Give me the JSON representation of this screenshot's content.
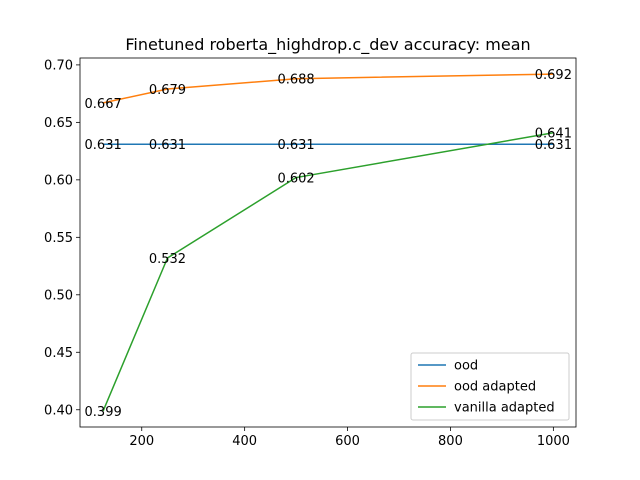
{
  "chart_data": {
    "type": "line",
    "title": "Finetuned roberta_highdrop.c_dev accuracy: mean",
    "xlabel": "",
    "ylabel": "",
    "xlim": [
      80,
      1044
    ],
    "ylim": [
      0.385,
      0.706
    ],
    "xticks": [
      200,
      400,
      600,
      800,
      1000
    ],
    "yticks": [
      0.4,
      0.45,
      0.5,
      0.55,
      0.6,
      0.65,
      0.7
    ],
    "xtick_labels": [
      "200",
      "400",
      "600",
      "800",
      "1000"
    ],
    "ytick_labels": [
      "0.40",
      "0.45",
      "0.50",
      "0.55",
      "0.60",
      "0.65",
      "0.70"
    ],
    "grid": false,
    "legend_position": "lower-right",
    "series": [
      {
        "name": "ood",
        "color": "#1f77b4",
        "x": [
          125,
          250,
          500,
          1000
        ],
        "y": [
          0.631,
          0.631,
          0.631,
          0.631
        ],
        "labels": [
          "0.631",
          "0.631",
          "0.631",
          "0.631"
        ]
      },
      {
        "name": "ood adapted",
        "color": "#ff7f0e",
        "x": [
          125,
          250,
          500,
          1000
        ],
        "y": [
          0.667,
          0.679,
          0.688,
          0.692
        ],
        "labels": [
          "0.667",
          "0.679",
          "0.688",
          "0.692"
        ]
      },
      {
        "name": "vanilla adapted",
        "color": "#2ca02c",
        "x": [
          125,
          250,
          500,
          1000
        ],
        "y": [
          0.399,
          0.532,
          0.602,
          0.641
        ],
        "labels": [
          "0.399",
          "0.532",
          "0.602",
          "0.641"
        ]
      }
    ]
  }
}
